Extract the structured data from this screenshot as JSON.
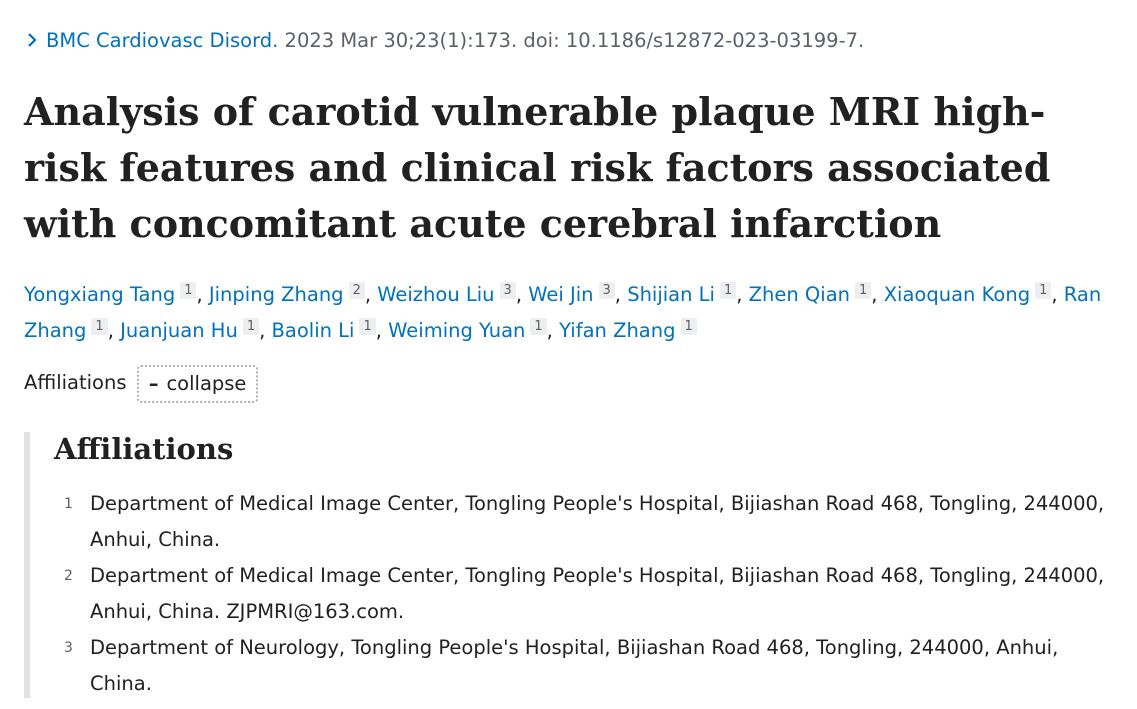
{
  "citation": {
    "journal": "BMC Cardiovasc Disord.",
    "details": "2023 Mar 30;23(1):173. doi: 10.1186/s12872-023-03199-7."
  },
  "title": "Analysis of carotid vulnerable plaque MRI high-risk features and clinical risk factors associated with concomitant acute cerebral infarction",
  "authors": [
    {
      "name": "Yongxiang Tang",
      "aff": "1"
    },
    {
      "name": "Jinping Zhang",
      "aff": "2"
    },
    {
      "name": "Weizhou Liu",
      "aff": "3"
    },
    {
      "name": "Wei Jin",
      "aff": "3"
    },
    {
      "name": "Shijian Li",
      "aff": "1"
    },
    {
      "name": "Zhen Qian",
      "aff": "1"
    },
    {
      "name": "Xiaoquan Kong",
      "aff": "1"
    },
    {
      "name": "Ran Zhang",
      "aff": "1"
    },
    {
      "name": "Juanjuan Hu",
      "aff": "1"
    },
    {
      "name": "Baolin Li",
      "aff": "1"
    },
    {
      "name": "Weiming Yuan",
      "aff": "1"
    },
    {
      "name": "Yifan Zhang",
      "aff": "1"
    }
  ],
  "affiliations_toggle": {
    "label": "Affiliations",
    "button_label": "collapse"
  },
  "affiliations": {
    "heading": "Affiliations",
    "items": [
      {
        "num": "1",
        "text": "Department of Medical Image Center, Tongling People's Hospital, Bijiashan Road 468, Tongling, 244000, Anhui, China."
      },
      {
        "num": "2",
        "text": "Department of Medical Image Center, Tongling People's Hospital, Bijiashan Road 468, Tongling, 244000, Anhui, China. ZJPMRI@163.com."
      },
      {
        "num": "3",
        "text": "Department of Neurology, Tongling People's Hospital, Bijiashan Road 468, Tongling, 244000, Anhui, China."
      }
    ]
  },
  "colors": {
    "link": "#0071bc",
    "text": "#212121",
    "muted": "#5b616b",
    "badge_bg": "#eceef0",
    "panel_border": "#dfe1e2"
  },
  "icons": {
    "journal_chevron": "chevron-right-icon",
    "collapse": "minus-icon"
  }
}
